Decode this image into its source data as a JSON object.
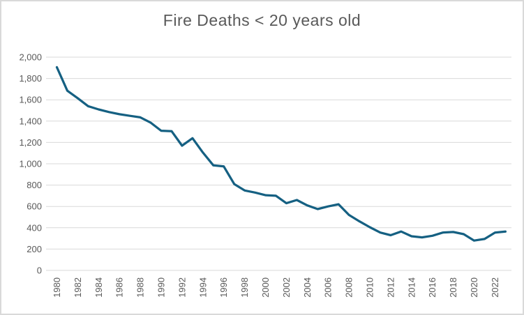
{
  "chart_data": {
    "type": "line",
    "title": "Fire Deaths < 20 years old",
    "xlabel": "",
    "ylabel": "",
    "x": [
      1980,
      1981,
      1982,
      1983,
      1984,
      1985,
      1986,
      1987,
      1988,
      1989,
      1990,
      1991,
      1992,
      1993,
      1994,
      1995,
      1996,
      1997,
      1998,
      1999,
      2000,
      2001,
      2002,
      2003,
      2004,
      2005,
      2006,
      2007,
      2008,
      2009,
      2010,
      2011,
      2012,
      2013,
      2014,
      2015,
      2016,
      2017,
      2018,
      2019,
      2020,
      2021,
      2022,
      2023
    ],
    "values": [
      1905,
      1685,
      1615,
      1540,
      1510,
      1485,
      1465,
      1450,
      1435,
      1385,
      1310,
      1305,
      1170,
      1240,
      1105,
      985,
      975,
      810,
      750,
      730,
      705,
      700,
      630,
      660,
      610,
      575,
      600,
      620,
      520,
      460,
      405,
      355,
      330,
      365,
      320,
      310,
      325,
      355,
      360,
      340,
      280,
      295,
      355,
      365
    ],
    "ylim": [
      0,
      2000
    ],
    "ytick_interval": 200,
    "ytick_labels": [
      "2,000",
      "1,800",
      "1,600",
      "1,400",
      "1,200",
      "1,000",
      "800",
      "600",
      "400",
      "200",
      "0"
    ],
    "ytick_values": [
      2000,
      1800,
      1600,
      1400,
      1200,
      1000,
      800,
      600,
      400,
      200,
      0
    ],
    "xtick_labels": [
      "1980",
      "1982",
      "1984",
      "1986",
      "1988",
      "1990",
      "1992",
      "1994",
      "1996",
      "1998",
      "2000",
      "2002",
      "2004",
      "2006",
      "2008",
      "2010",
      "2012",
      "2014",
      "2016",
      "2018",
      "2020",
      "2022"
    ],
    "grid": true,
    "legend_position": "none",
    "line_color": "#156082",
    "grid_color": "#d9d9d9",
    "label_color": "#595959",
    "title_color": "#595959",
    "background_color": "#ffffff",
    "border_color": "#d9d9d9"
  }
}
